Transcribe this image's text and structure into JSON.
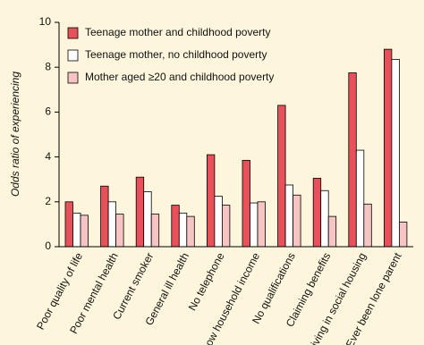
{
  "chart_data": {
    "type": "bar",
    "ylabel": "Odds ratio of experiencing",
    "categories": [
      "Poor quality of life",
      "Poor mental health",
      "Current smoker",
      "General ill health",
      "No telephone",
      "Low household income",
      "No qualifications",
      "Claiming benefits",
      "Living in social housing",
      "Ever been lone parent"
    ],
    "series": [
      {
        "name": "Teenage mother and childhood poverty",
        "color": "#e8515a",
        "values": [
          2.0,
          2.7,
          3.1,
          1.85,
          4.1,
          3.85,
          6.3,
          3.05,
          7.75,
          8.8
        ]
      },
      {
        "name": "Teenage mother, no childhood poverty",
        "color": "#ffffff",
        "values": [
          1.5,
          2.0,
          2.45,
          1.5,
          2.25,
          1.95,
          2.75,
          2.5,
          4.3,
          8.35
        ]
      },
      {
        "name": "Mother aged ≥20 and childhood poverty",
        "color": "#f7c4c4",
        "values": [
          1.4,
          1.45,
          1.45,
          1.35,
          1.85,
          2.0,
          2.3,
          1.35,
          1.9,
          1.1
        ]
      }
    ],
    "ylim": [
      0,
      10
    ],
    "yticks": [
      0,
      2,
      4,
      6,
      8,
      10
    ],
    "legend": "upper-left"
  }
}
